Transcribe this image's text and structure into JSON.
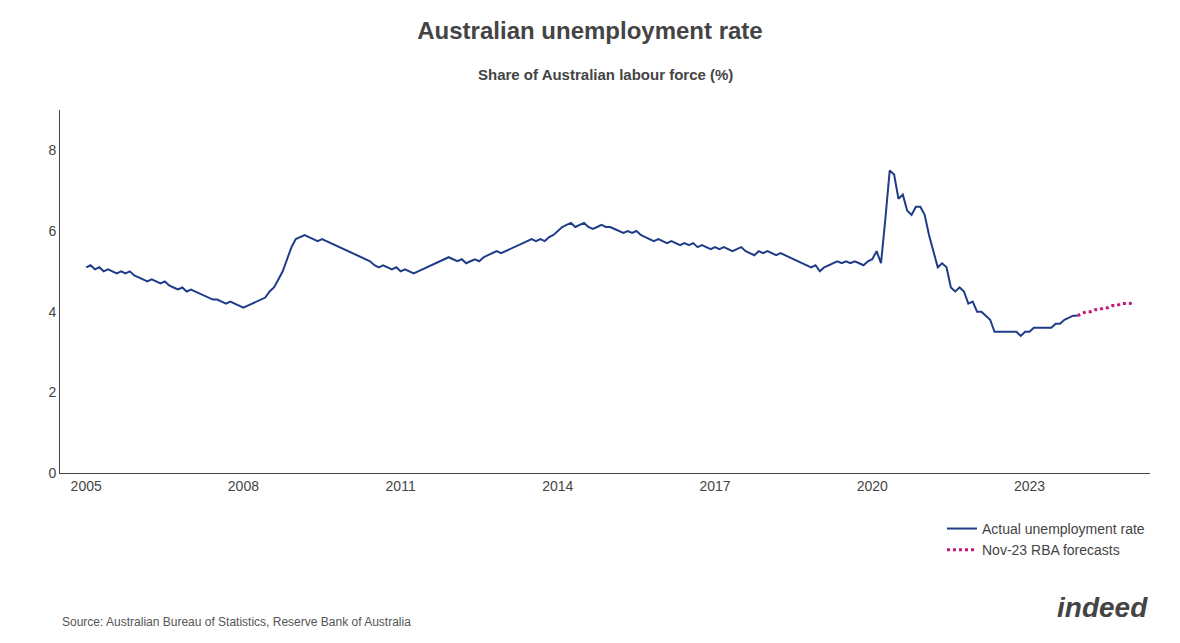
{
  "chart_data": {
    "type": "line",
    "title": "Australian unemployment rate",
    "subtitle": "Share of Australian labour force (%)",
    "annotations": [
      "Source: Australian Bureau of Statistics, Reserve Bank of Australia",
      "indeed"
    ],
    "xlim": [
      2004.5,
      2025.3
    ],
    "xticks": [
      2005,
      2008,
      2011,
      2014,
      2017,
      2020,
      2023
    ],
    "ylim": [
      0,
      9.0
    ],
    "yticks": [
      0,
      2,
      4,
      6,
      8
    ],
    "grid": false,
    "legend": "lower right",
    "series": [
      {
        "name": "Actual unemployment rate",
        "color": "#1f3c88",
        "line_style": "solid",
        "x": [
          2005.0,
          2005.083,
          2005.167,
          2005.25,
          2005.333,
          2005.417,
          2005.5,
          2005.583,
          2005.667,
          2005.75,
          2005.833,
          2005.917,
          2006.0,
          2006.083,
          2006.167,
          2006.25,
          2006.333,
          2006.417,
          2006.5,
          2006.583,
          2006.667,
          2006.75,
          2006.833,
          2006.917,
          2007.0,
          2007.083,
          2007.167,
          2007.25,
          2007.333,
          2007.417,
          2007.5,
          2007.583,
          2007.667,
          2007.75,
          2007.833,
          2007.917,
          2008.0,
          2008.083,
          2008.167,
          2008.25,
          2008.333,
          2008.417,
          2008.5,
          2008.583,
          2008.667,
          2008.75,
          2008.833,
          2008.917,
          2009.0,
          2009.083,
          2009.167,
          2009.25,
          2009.333,
          2009.417,
          2009.5,
          2009.583,
          2009.667,
          2009.75,
          2009.833,
          2009.917,
          2010.0,
          2010.083,
          2010.167,
          2010.25,
          2010.333,
          2010.417,
          2010.5,
          2010.583,
          2010.667,
          2010.75,
          2010.833,
          2010.917,
          2011.0,
          2011.083,
          2011.167,
          2011.25,
          2011.333,
          2011.417,
          2011.5,
          2011.583,
          2011.667,
          2011.75,
          2011.833,
          2011.917,
          2012.0,
          2012.083,
          2012.167,
          2012.25,
          2012.333,
          2012.417,
          2012.5,
          2012.583,
          2012.667,
          2012.75,
          2012.833,
          2012.917,
          2013.0,
          2013.083,
          2013.167,
          2013.25,
          2013.333,
          2013.417,
          2013.5,
          2013.583,
          2013.667,
          2013.75,
          2013.833,
          2013.917,
          2014.0,
          2014.083,
          2014.167,
          2014.25,
          2014.333,
          2014.417,
          2014.5,
          2014.583,
          2014.667,
          2014.75,
          2014.833,
          2014.917,
          2015.0,
          2015.083,
          2015.167,
          2015.25,
          2015.333,
          2015.417,
          2015.5,
          2015.583,
          2015.667,
          2015.75,
          2015.833,
          2015.917,
          2016.0,
          2016.083,
          2016.167,
          2016.25,
          2016.333,
          2016.417,
          2016.5,
          2016.583,
          2016.667,
          2016.75,
          2016.833,
          2016.917,
          2017.0,
          2017.083,
          2017.167,
          2017.25,
          2017.333,
          2017.417,
          2017.5,
          2017.583,
          2017.667,
          2017.75,
          2017.833,
          2017.917,
          2018.0,
          2018.083,
          2018.167,
          2018.25,
          2018.333,
          2018.417,
          2018.5,
          2018.583,
          2018.667,
          2018.75,
          2018.833,
          2018.917,
          2019.0,
          2019.083,
          2019.167,
          2019.25,
          2019.333,
          2019.417,
          2019.5,
          2019.583,
          2019.667,
          2019.75,
          2019.833,
          2019.917,
          2020.0,
          2020.083,
          2020.167,
          2020.25,
          2020.333,
          2020.417,
          2020.5,
          2020.583,
          2020.667,
          2020.75,
          2020.833,
          2020.917,
          2021.0,
          2021.083,
          2021.167,
          2021.25,
          2021.333,
          2021.417,
          2021.5,
          2021.583,
          2021.667,
          2021.75,
          2021.833,
          2021.917,
          2022.0,
          2022.083,
          2022.167,
          2022.25,
          2022.333,
          2022.417,
          2022.5,
          2022.583,
          2022.667,
          2022.75,
          2022.833,
          2022.917,
          2023.0,
          2023.083,
          2023.167,
          2023.25,
          2023.333,
          2023.417,
          2023.5,
          2023.583,
          2023.667,
          2023.75,
          2023.833,
          2023.917
        ],
        "values": [
          5.1,
          5.15,
          5.05,
          5.1,
          5.0,
          5.05,
          5.0,
          4.95,
          5.0,
          4.95,
          5.0,
          4.9,
          4.85,
          4.8,
          4.75,
          4.8,
          4.75,
          4.7,
          4.75,
          4.65,
          4.6,
          4.55,
          4.6,
          4.5,
          4.55,
          4.5,
          4.45,
          4.4,
          4.35,
          4.3,
          4.3,
          4.25,
          4.2,
          4.25,
          4.2,
          4.15,
          4.1,
          4.15,
          4.2,
          4.25,
          4.3,
          4.35,
          4.5,
          4.6,
          4.8,
          5.0,
          5.3,
          5.6,
          5.8,
          5.85,
          5.9,
          5.85,
          5.8,
          5.75,
          5.8,
          5.75,
          5.7,
          5.65,
          5.6,
          5.55,
          5.5,
          5.45,
          5.4,
          5.35,
          5.3,
          5.25,
          5.15,
          5.1,
          5.15,
          5.1,
          5.05,
          5.1,
          5.0,
          5.05,
          5.0,
          4.95,
          5.0,
          5.05,
          5.1,
          5.15,
          5.2,
          5.25,
          5.3,
          5.35,
          5.3,
          5.25,
          5.3,
          5.2,
          5.25,
          5.3,
          5.25,
          5.35,
          5.4,
          5.45,
          5.5,
          5.45,
          5.5,
          5.55,
          5.6,
          5.65,
          5.7,
          5.75,
          5.8,
          5.75,
          5.8,
          5.75,
          5.85,
          5.9,
          6.0,
          6.1,
          6.15,
          6.2,
          6.1,
          6.15,
          6.2,
          6.1,
          6.05,
          6.1,
          6.15,
          6.1,
          6.1,
          6.05,
          6.0,
          5.95,
          6.0,
          5.95,
          6.0,
          5.9,
          5.85,
          5.8,
          5.75,
          5.8,
          5.75,
          5.7,
          5.75,
          5.7,
          5.65,
          5.7,
          5.65,
          5.7,
          5.6,
          5.65,
          5.6,
          5.55,
          5.6,
          5.55,
          5.6,
          5.55,
          5.5,
          5.55,
          5.6,
          5.5,
          5.45,
          5.4,
          5.5,
          5.45,
          5.5,
          5.45,
          5.4,
          5.45,
          5.4,
          5.35,
          5.3,
          5.25,
          5.2,
          5.15,
          5.1,
          5.15,
          5.0,
          5.1,
          5.15,
          5.2,
          5.25,
          5.2,
          5.25,
          5.2,
          5.25,
          5.2,
          5.15,
          5.25,
          5.3,
          5.5,
          5.2,
          6.3,
          7.5,
          7.4,
          6.8,
          6.9,
          6.5,
          6.4,
          6.6,
          6.6,
          6.4,
          5.9,
          5.5,
          5.1,
          5.2,
          5.1,
          4.6,
          4.5,
          4.6,
          4.5,
          4.2,
          4.25,
          4.0,
          4.0,
          3.9,
          3.8,
          3.5,
          3.5,
          3.5,
          3.5,
          3.5,
          3.5,
          3.4,
          3.5,
          3.5,
          3.6,
          3.6,
          3.6,
          3.6,
          3.6,
          3.7,
          3.7,
          3.8,
          3.85,
          3.9,
          3.9
        ]
      },
      {
        "name": "Nov-23 RBA forecasts",
        "color": "#c0177a",
        "line_style": "dotted",
        "x": [
          2023.917,
          2024.0,
          2024.083,
          2024.167,
          2024.25,
          2024.333,
          2024.417,
          2024.5,
          2024.583,
          2024.667,
          2024.75,
          2024.833,
          2024.917,
          2025.0
        ],
        "values": [
          3.9,
          3.95,
          4.0,
          4.0,
          4.05,
          4.05,
          4.1,
          4.1,
          4.15,
          4.15,
          4.2,
          4.2,
          4.2,
          4.25
        ]
      }
    ]
  }
}
